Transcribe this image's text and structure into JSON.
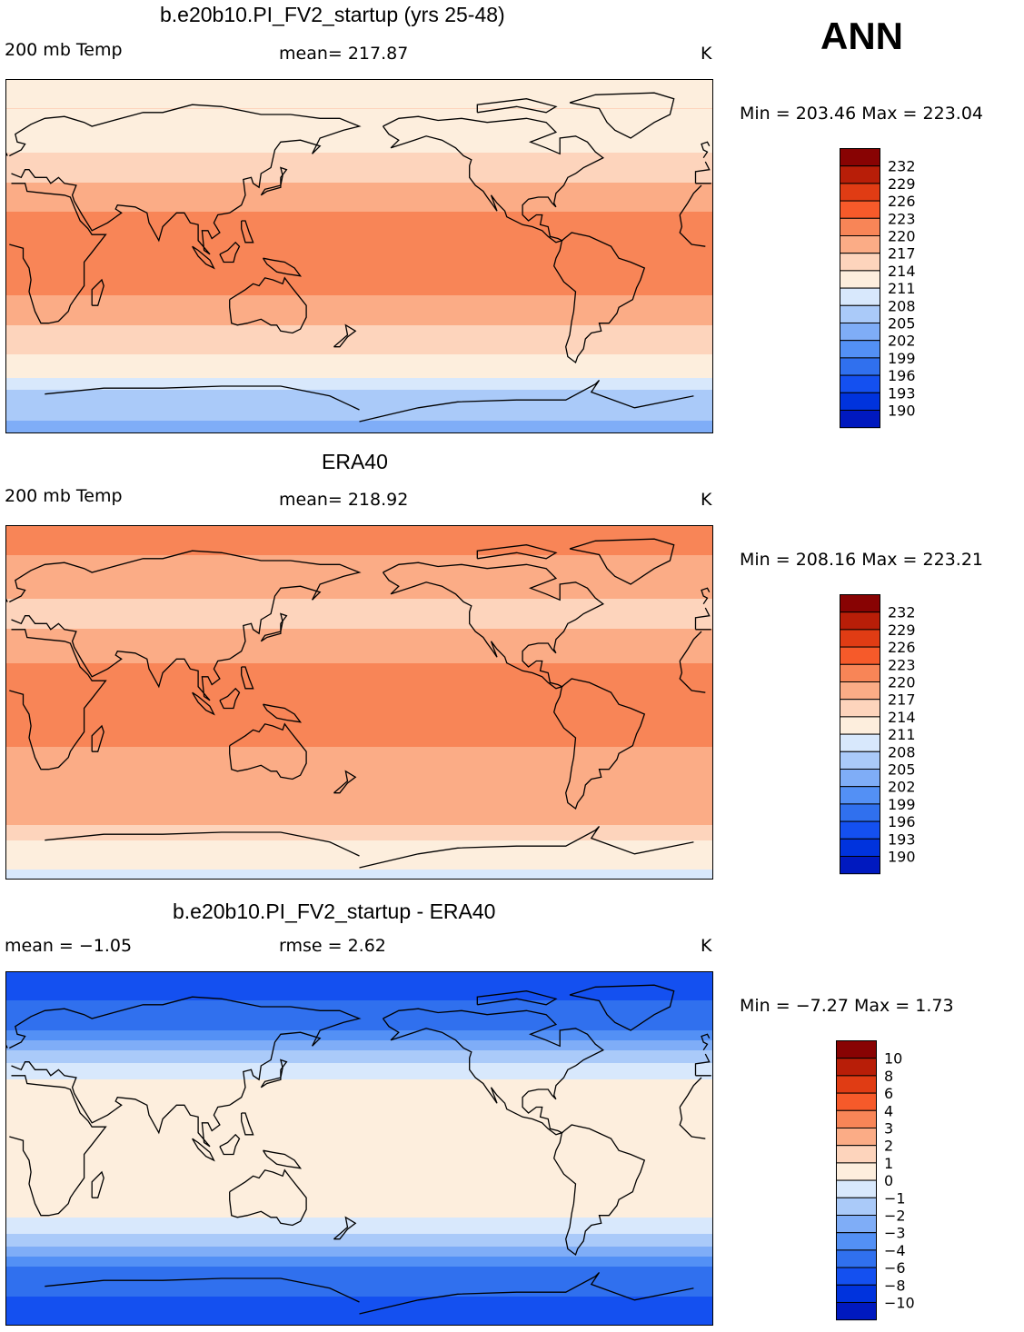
{
  "season": "ANN",
  "colors": {
    "ramp": [
      "#00007f",
      "#0019bf",
      "#0033dd",
      "#1450f0",
      "#3070ee",
      "#5390f5",
      "#7fadf7",
      "#aacaf9",
      "#d8e8fc",
      "#fdeedd",
      "#fdd4bc",
      "#fbac86",
      "#f88557",
      "#f65a2a",
      "#e03c14",
      "#b81e08",
      "#880303"
    ],
    "coast": "#000000"
  },
  "panels": [
    {
      "title": "b.e20b10.PI_FV2_startup (yrs 25-48)",
      "left_label": "200 mb Temp",
      "center_label": "mean= 217.87",
      "units": "K",
      "minmax": "Min = 203.46 Max = 223.04"
    },
    {
      "title": "ERA40",
      "left_label": "200 mb Temp",
      "center_label": "mean= 218.92",
      "units": "K",
      "minmax": "Min = 208.16 Max = 223.21"
    },
    {
      "title": "b.e20b10.PI_FV2_startup - ERA40",
      "left_label": "mean =   −1.05",
      "center_label": "rmse =    2.62",
      "units": "K",
      "minmax": "Min =   −7.27 Max =    1.73"
    }
  ],
  "chart_data": [
    {
      "type": "heatmap",
      "title": "b.e20b10.PI_FV2_startup (yrs 25-48)",
      "variable": "200 mb Temp",
      "units": "K",
      "mean": 217.87,
      "min": 203.46,
      "max": 223.04,
      "x": "longitude",
      "y": "latitude",
      "zonal_profile": {
        "lat": [
          90,
          75,
          60,
          45,
          30,
          15,
          0,
          -15,
          -30,
          -45,
          -60,
          -70,
          -90
        ],
        "value": [
          213,
          214,
          213,
          215,
          219,
          221,
          221,
          221,
          218,
          215,
          212,
          207,
          204
        ]
      },
      "colorbar_levels": [
        "232",
        "229",
        "226",
        "223",
        "220",
        "217",
        "214",
        "211",
        "208",
        "205",
        "202",
        "199",
        "196",
        "193",
        "190"
      ]
    },
    {
      "type": "heatmap",
      "title": "ERA40",
      "variable": "200 mb Temp",
      "units": "K",
      "mean": 218.92,
      "min": 208.16,
      "max": 223.21,
      "x": "longitude",
      "y": "latitude",
      "zonal_profile": {
        "lat": [
          90,
          75,
          60,
          45,
          30,
          15,
          0,
          -15,
          -30,
          -45,
          -60,
          -70,
          -90
        ],
        "value": [
          221,
          220,
          218,
          216,
          218,
          221,
          221,
          221,
          219,
          217,
          218,
          214,
          210
        ]
      },
      "colorbar_levels": [
        "232",
        "229",
        "226",
        "223",
        "220",
        "217",
        "214",
        "211",
        "208",
        "205",
        "202",
        "199",
        "196",
        "193",
        "190"
      ]
    },
    {
      "type": "heatmap",
      "title": "b.e20b10.PI_FV2_startup - ERA40",
      "variable": "difference",
      "units": "K",
      "mean": -1.05,
      "rmse": 2.62,
      "min": -7.27,
      "max": 1.73,
      "x": "longitude",
      "y": "latitude",
      "zonal_profile": {
        "lat": [
          90,
          75,
          60,
          50,
          40,
          30,
          15,
          0,
          -15,
          -30,
          -40,
          -50,
          -60,
          -75,
          -90
        ],
        "value": [
          -7,
          -6,
          -4,
          -2,
          -0.5,
          0.5,
          0.5,
          0.5,
          0.5,
          0.5,
          -0.5,
          -2,
          -4,
          -6,
          -7
        ]
      },
      "colorbar_levels": [
        "10",
        "8",
        "6",
        "4",
        "3",
        "2",
        "1",
        "0",
        "−1",
        "−2",
        "−3",
        "−4",
        "−6",
        "−8",
        "−10"
      ]
    }
  ]
}
